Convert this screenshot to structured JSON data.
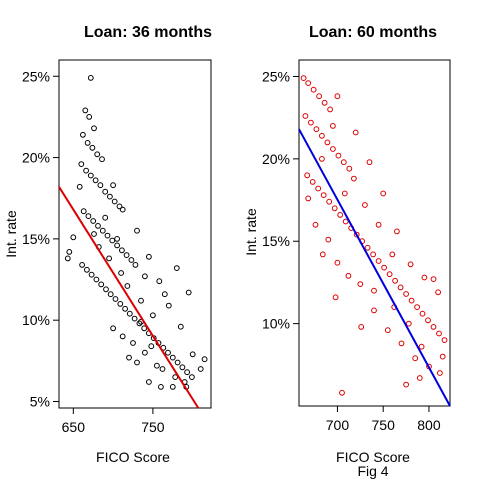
{
  "figure_caption": "Fig 4",
  "chart_data": [
    {
      "type": "scatter",
      "title": "Loan: 36 months",
      "xlabel": "FICO Score",
      "ylabel": "Int. rate",
      "xlim": [
        632,
        823
      ],
      "ylim": [
        4.6,
        26.0
      ],
      "xticks": [
        650,
        750
      ],
      "xtick_labels": [
        "650",
        "750"
      ],
      "yticks": [
        5,
        10,
        15,
        20,
        25
      ],
      "ytick_labels": [
        "5%",
        "10%",
        "15%",
        "20%",
        "25%"
      ],
      "point_color": "#000000",
      "line_color": "#dd0000",
      "grid": false,
      "fit_line": [
        {
          "x": 632,
          "y": 18.2
        },
        {
          "x": 807,
          "y": 4.6
        }
      ],
      "points": [
        {
          "x": 672,
          "y": 24.9
        },
        {
          "x": 665,
          "y": 22.9
        },
        {
          "x": 670,
          "y": 22.5
        },
        {
          "x": 676,
          "y": 21.8
        },
        {
          "x": 662,
          "y": 21.4
        },
        {
          "x": 668,
          "y": 20.9
        },
        {
          "x": 674,
          "y": 20.6
        },
        {
          "x": 680,
          "y": 20.2
        },
        {
          "x": 686,
          "y": 19.9
        },
        {
          "x": 660,
          "y": 19.6
        },
        {
          "x": 666,
          "y": 19.2
        },
        {
          "x": 672,
          "y": 18.9
        },
        {
          "x": 678,
          "y": 18.6
        },
        {
          "x": 684,
          "y": 18.3
        },
        {
          "x": 690,
          "y": 17.9
        },
        {
          "x": 696,
          "y": 17.6
        },
        {
          "x": 702,
          "y": 17.3
        },
        {
          "x": 708,
          "y": 17.0
        },
        {
          "x": 663,
          "y": 16.7
        },
        {
          "x": 669,
          "y": 16.4
        },
        {
          "x": 675,
          "y": 16.1
        },
        {
          "x": 681,
          "y": 15.8
        },
        {
          "x": 687,
          "y": 15.5
        },
        {
          "x": 693,
          "y": 15.2
        },
        {
          "x": 699,
          "y": 14.9
        },
        {
          "x": 705,
          "y": 14.6
        },
        {
          "x": 711,
          "y": 14.3
        },
        {
          "x": 717,
          "y": 14.0
        },
        {
          "x": 723,
          "y": 13.7
        },
        {
          "x": 661,
          "y": 13.4
        },
        {
          "x": 667,
          "y": 13.1
        },
        {
          "x": 673,
          "y": 12.8
        },
        {
          "x": 679,
          "y": 12.5
        },
        {
          "x": 685,
          "y": 12.2
        },
        {
          "x": 691,
          "y": 11.9
        },
        {
          "x": 697,
          "y": 11.6
        },
        {
          "x": 703,
          "y": 11.3
        },
        {
          "x": 709,
          "y": 11.0
        },
        {
          "x": 715,
          "y": 10.7
        },
        {
          "x": 721,
          "y": 10.4
        },
        {
          "x": 727,
          "y": 10.1
        },
        {
          "x": 733,
          "y": 9.8
        },
        {
          "x": 739,
          "y": 9.5
        },
        {
          "x": 745,
          "y": 9.2
        },
        {
          "x": 751,
          "y": 8.9
        },
        {
          "x": 757,
          "y": 8.6
        },
        {
          "x": 763,
          "y": 8.3
        },
        {
          "x": 769,
          "y": 8.0
        },
        {
          "x": 775,
          "y": 7.7
        },
        {
          "x": 781,
          "y": 7.4
        },
        {
          "x": 787,
          "y": 7.1
        },
        {
          "x": 793,
          "y": 6.8
        },
        {
          "x": 799,
          "y": 6.5
        },
        {
          "x": 745,
          "y": 6.2
        },
        {
          "x": 760,
          "y": 5.9
        },
        {
          "x": 775,
          "y": 5.9
        },
        {
          "x": 790,
          "y": 6.2
        },
        {
          "x": 720,
          "y": 7.7
        },
        {
          "x": 730,
          "y": 7.4
        },
        {
          "x": 740,
          "y": 8.0
        },
        {
          "x": 755,
          "y": 7.2
        },
        {
          "x": 700,
          "y": 9.5
        },
        {
          "x": 712,
          "y": 9.0
        },
        {
          "x": 725,
          "y": 8.6
        },
        {
          "x": 735,
          "y": 11.2
        },
        {
          "x": 710,
          "y": 12.9
        },
        {
          "x": 695,
          "y": 13.8
        },
        {
          "x": 682,
          "y": 14.5
        },
        {
          "x": 676,
          "y": 15.3
        },
        {
          "x": 658,
          "y": 18.2
        },
        {
          "x": 645,
          "y": 14.2
        },
        {
          "x": 643,
          "y": 13.8
        },
        {
          "x": 650,
          "y": 15.1
        },
        {
          "x": 700,
          "y": 18.3
        },
        {
          "x": 712,
          "y": 16.8
        },
        {
          "x": 730,
          "y": 15.5
        },
        {
          "x": 745,
          "y": 13.9
        },
        {
          "x": 758,
          "y": 12.4
        },
        {
          "x": 770,
          "y": 10.9
        },
        {
          "x": 785,
          "y": 9.6
        },
        {
          "x": 800,
          "y": 7.9
        },
        {
          "x": 810,
          "y": 7.0
        },
        {
          "x": 815,
          "y": 7.6
        },
        {
          "x": 795,
          "y": 11.7
        },
        {
          "x": 780,
          "y": 13.2
        },
        {
          "x": 765,
          "y": 11.6
        },
        {
          "x": 750,
          "y": 10.3
        },
        {
          "x": 740,
          "y": 12.7
        },
        {
          "x": 728,
          "y": 13.4
        },
        {
          "x": 690,
          "y": 16.3
        },
        {
          "x": 705,
          "y": 15.0
        },
        {
          "x": 718,
          "y": 12.1
        },
        {
          "x": 735,
          "y": 9.9
        },
        {
          "x": 748,
          "y": 8.4
        },
        {
          "x": 762,
          "y": 7.0
        },
        {
          "x": 778,
          "y": 6.5
        },
        {
          "x": 792,
          "y": 5.9
        }
      ]
    },
    {
      "type": "scatter",
      "title": "Loan: 60 months",
      "xlabel": "FICO Score",
      "ylabel": "Int. rate",
      "xlim": [
        658,
        823
      ],
      "ylim": [
        5.0,
        26.0
      ],
      "xticks": [
        700,
        750,
        800
      ],
      "xtick_labels": [
        "700",
        "750",
        "800"
      ],
      "yticks": [
        10,
        15,
        20,
        25
      ],
      "ytick_labels": [
        "10%",
        "15%",
        "20%",
        "25%"
      ],
      "point_color": "#dd0000",
      "line_color": "#0000dd",
      "grid": false,
      "fit_line": [
        {
          "x": 658,
          "y": 21.8
        },
        {
          "x": 823,
          "y": 5.0
        }
      ],
      "points": [
        {
          "x": 663,
          "y": 24.9
        },
        {
          "x": 668,
          "y": 24.6
        },
        {
          "x": 674,
          "y": 24.2
        },
        {
          "x": 680,
          "y": 23.8
        },
        {
          "x": 686,
          "y": 23.4
        },
        {
          "x": 692,
          "y": 23.0
        },
        {
          "x": 665,
          "y": 22.6
        },
        {
          "x": 671,
          "y": 22.2
        },
        {
          "x": 677,
          "y": 21.8
        },
        {
          "x": 683,
          "y": 21.4
        },
        {
          "x": 689,
          "y": 21.0
        },
        {
          "x": 695,
          "y": 20.6
        },
        {
          "x": 701,
          "y": 20.2
        },
        {
          "x": 707,
          "y": 19.8
        },
        {
          "x": 713,
          "y": 19.4
        },
        {
          "x": 667,
          "y": 19.0
        },
        {
          "x": 673,
          "y": 18.6
        },
        {
          "x": 679,
          "y": 18.2
        },
        {
          "x": 685,
          "y": 17.8
        },
        {
          "x": 691,
          "y": 17.4
        },
        {
          "x": 697,
          "y": 17.0
        },
        {
          "x": 703,
          "y": 16.6
        },
        {
          "x": 709,
          "y": 16.2
        },
        {
          "x": 715,
          "y": 15.8
        },
        {
          "x": 721,
          "y": 15.4
        },
        {
          "x": 727,
          "y": 15.0
        },
        {
          "x": 733,
          "y": 14.6
        },
        {
          "x": 739,
          "y": 14.2
        },
        {
          "x": 745,
          "y": 13.8
        },
        {
          "x": 751,
          "y": 13.4
        },
        {
          "x": 757,
          "y": 13.0
        },
        {
          "x": 763,
          "y": 12.6
        },
        {
          "x": 769,
          "y": 12.2
        },
        {
          "x": 775,
          "y": 11.8
        },
        {
          "x": 781,
          "y": 11.4
        },
        {
          "x": 787,
          "y": 11.0
        },
        {
          "x": 793,
          "y": 10.6
        },
        {
          "x": 799,
          "y": 10.2
        },
        {
          "x": 805,
          "y": 9.8
        },
        {
          "x": 811,
          "y": 9.4
        },
        {
          "x": 817,
          "y": 9.0
        },
        {
          "x": 700,
          "y": 23.8
        },
        {
          "x": 720,
          "y": 21.6
        },
        {
          "x": 735,
          "y": 19.8
        },
        {
          "x": 750,
          "y": 17.9
        },
        {
          "x": 765,
          "y": 15.6
        },
        {
          "x": 780,
          "y": 13.6
        },
        {
          "x": 795,
          "y": 12.8
        },
        {
          "x": 810,
          "y": 11.9
        },
        {
          "x": 700,
          "y": 13.7
        },
        {
          "x": 712,
          "y": 12.9
        },
        {
          "x": 725,
          "y": 12.4
        },
        {
          "x": 740,
          "y": 10.8
        },
        {
          "x": 755,
          "y": 9.6
        },
        {
          "x": 770,
          "y": 8.8
        },
        {
          "x": 785,
          "y": 7.9
        },
        {
          "x": 800,
          "y": 7.4
        },
        {
          "x": 815,
          "y": 8.0
        },
        {
          "x": 775,
          "y": 6.3
        },
        {
          "x": 790,
          "y": 6.7
        },
        {
          "x": 705,
          "y": 5.8
        },
        {
          "x": 690,
          "y": 15.1
        },
        {
          "x": 708,
          "y": 17.9
        },
        {
          "x": 730,
          "y": 17.2
        },
        {
          "x": 745,
          "y": 16.0
        },
        {
          "x": 760,
          "y": 14.2
        },
        {
          "x": 683,
          "y": 20.0
        },
        {
          "x": 695,
          "y": 22.0
        },
        {
          "x": 718,
          "y": 18.8
        },
        {
          "x": 740,
          "y": 12.0
        },
        {
          "x": 762,
          "y": 11.0
        },
        {
          "x": 778,
          "y": 10.0
        },
        {
          "x": 792,
          "y": 8.6
        },
        {
          "x": 805,
          "y": 12.7
        },
        {
          "x": 812,
          "y": 7.0
        },
        {
          "x": 668,
          "y": 17.6
        },
        {
          "x": 676,
          "y": 16.0
        },
        {
          "x": 684,
          "y": 14.2
        },
        {
          "x": 698,
          "y": 11.6
        },
        {
          "x": 726,
          "y": 9.8
        }
      ]
    }
  ]
}
